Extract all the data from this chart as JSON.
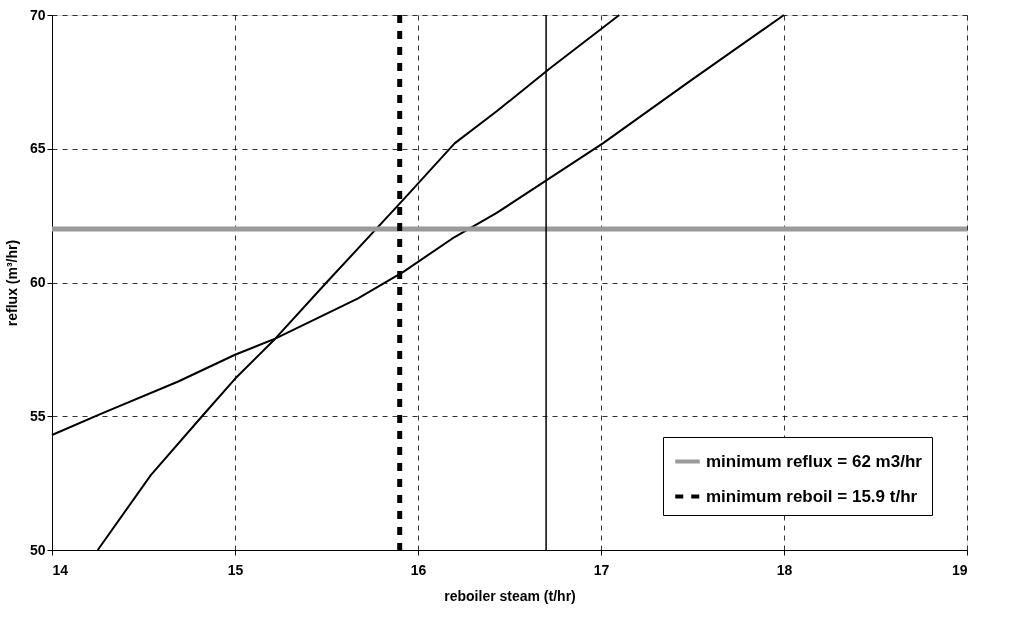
{
  "chart_data": {
    "type": "line",
    "xlabel": "reboiler steam (t/hr)",
    "ylabel": "reflux (m³/hr)",
    "xlim": [
      14,
      19
    ],
    "xticks": [
      14,
      15,
      16,
      17,
      18,
      19
    ],
    "ylim": [
      50,
      70
    ],
    "yticks": [
      50,
      55,
      60,
      65,
      70
    ],
    "grid": true,
    "legend": "bottom right",
    "line_style": "solid",
    "series": [
      {
        "color": "#000000",
        "x": [
          14.25,
          14.54,
          14.82,
          15.0,
          15.22,
          15.5,
          15.92,
          16.2,
          16.43,
          16.72,
          17.1
        ],
        "values": [
          50,
          52.8,
          55,
          56.4,
          57.9,
          60.0,
          63.1,
          65.2,
          66.4,
          68.0,
          70
        ]
      },
      {
        "color": "#000000",
        "x": [
          14.0,
          14.27,
          14.69,
          15.0,
          15.22,
          15.67,
          15.92,
          16.2,
          16.43,
          16.72,
          17.01,
          17.48,
          18.0
        ],
        "values": [
          54.3,
          55.1,
          56.3,
          57.3,
          57.9,
          59.4,
          60.4,
          61.7,
          62.6,
          63.9,
          65.2,
          67.5,
          70
        ]
      }
    ],
    "ref_lines": [
      {
        "axis": "y",
        "value": 62,
        "label": "minimum reflux = 62 m3/hr",
        "color": "#9a9a9a",
        "line_style": "solid"
      },
      {
        "axis": "x",
        "value": 15.9,
        "label": "minimum reboil = 15.9 t/hr",
        "color": "#000000",
        "line_style": "dashed"
      },
      {
        "axis": "x",
        "value": 16.7,
        "label": null,
        "color": "#000000",
        "line_style": "solid"
      }
    ]
  }
}
